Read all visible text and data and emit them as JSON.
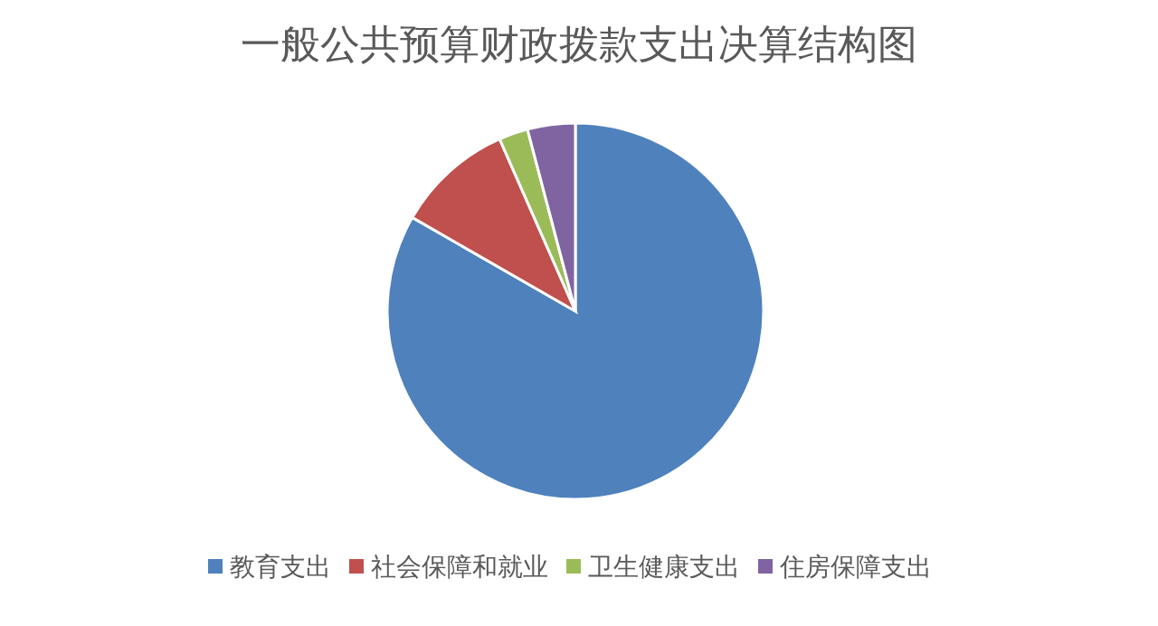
{
  "chart_data": {
    "type": "pie",
    "title": "一般公共预算财政拨款支出决算结构图",
    "categories": [
      "教育支出",
      "社会保障和就业",
      "卫生健康支出",
      "住房保障支出"
    ],
    "values": [
      83.3,
      10.1,
      2.5,
      4.1
    ],
    "colors": [
      "#4f81bd",
      "#c0504d",
      "#9bbb59",
      "#8064a2"
    ],
    "legend": "bottom"
  }
}
